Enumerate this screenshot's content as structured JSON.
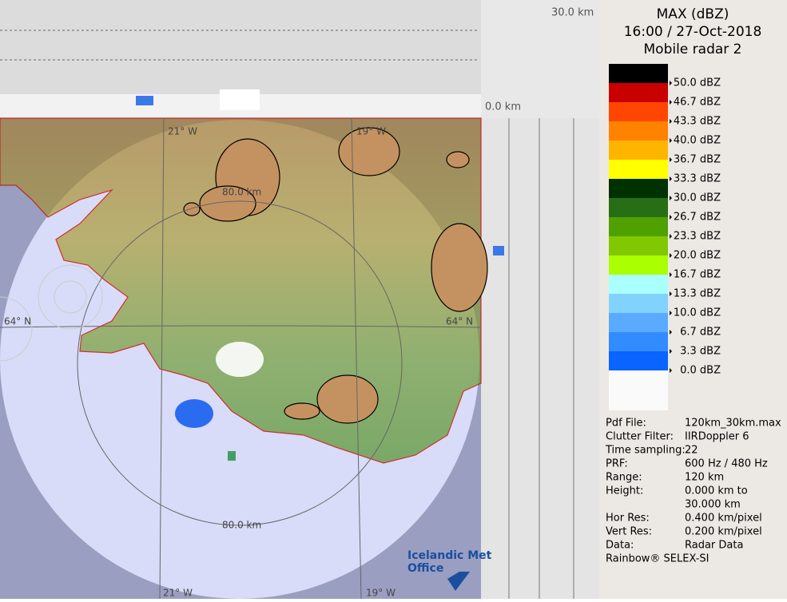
{
  "header": {
    "lines": [
      "MAX (dBZ)",
      "16:00 / 27-Oct-2018",
      "Mobile radar 2"
    ]
  },
  "legend": {
    "entries": [
      {
        "label": "50.0 dBZ",
        "color": "#000000"
      },
      {
        "label": "46.7 dBZ",
        "color": "#c80000"
      },
      {
        "label": "43.3 dBZ",
        "color": "#ff4600"
      },
      {
        "label": "40.0 dBZ",
        "color": "#ff8200"
      },
      {
        "label": "36.7 dBZ",
        "color": "#ffb400"
      },
      {
        "label": "33.3 dBZ",
        "color": "#ffff00"
      },
      {
        "label": "30.0 dBZ",
        "color": "#003200"
      },
      {
        "label": "26.7 dBZ",
        "color": "#286e14"
      },
      {
        "label": "23.3 dBZ",
        "color": "#50a000"
      },
      {
        "label": "20.0 dBZ",
        "color": "#82c800"
      },
      {
        "label": "16.7 dBZ",
        "color": "#aaff00"
      },
      {
        "label": "13.3 dBZ",
        "color": "#aaffff"
      },
      {
        "label": "10.0 dBZ",
        "color": "#82d2ff"
      },
      {
        "label": "6.7 dBZ",
        "color": "#5aaaff"
      },
      {
        "label": "3.3 dBZ",
        "color": "#328cff"
      },
      {
        "label": "0.0 dBZ",
        "color": "#0a64ff"
      }
    ]
  },
  "info": {
    "rows": [
      {
        "label": "Pdf File:",
        "value": "120km_30km.max"
      },
      {
        "label": "Clutter Filter:",
        "value": "IIRDoppler 6"
      },
      {
        "label": "Time sampling:",
        "value": "22"
      },
      {
        "label": "PRF:",
        "value": "600 Hz / 480 Hz"
      },
      {
        "label": "Range:",
        "value": "120 km"
      },
      {
        "label": "Height:",
        "value": "0.000 km to"
      },
      {
        "value": "30.000 km"
      },
      {
        "label": "Hor Res:",
        "value": "0.400 km/pixel"
      },
      {
        "label": "Vert Res:",
        "value": "0.200 km/pixel"
      },
      {
        "label": "Data:",
        "value": "Radar Data"
      }
    ],
    "footer": "Rainbow® SELEX-SI"
  },
  "map": {
    "height_top": "30.0 km",
    "height_bottom": "0.0 km",
    "labels": [
      "21° W",
      "19° W",
      "80.0 km",
      "64° N",
      "64° N",
      "80.0 km",
      "21° W",
      "19° W"
    ],
    "logo": [
      "Icelandic Met",
      "Office"
    ]
  }
}
